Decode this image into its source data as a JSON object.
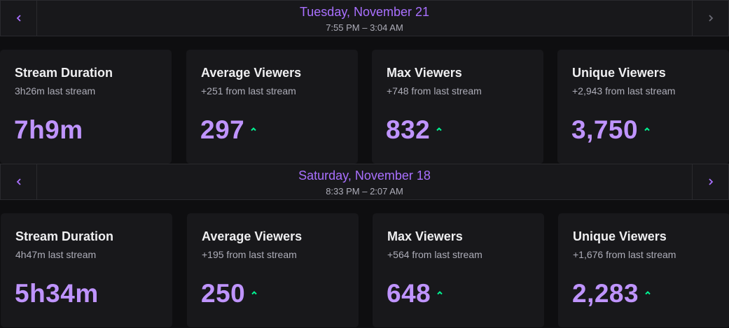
{
  "colors": {
    "accent": "#a970ff",
    "value": "#bf94ff",
    "up": "#00f593",
    "card_bg": "#18181b",
    "bg": "#0e0e10"
  },
  "streams": [
    {
      "date": "Tuesday, November 21",
      "time": "7:55 PM – 3:04 AM",
      "prev_icon": "chevron-left-icon",
      "next_icon": "chevron-right-icon",
      "stats": [
        {
          "title": "Stream Duration",
          "sub": "3h26m last stream",
          "value": "7h9m",
          "trend": ""
        },
        {
          "title": "Average Viewers",
          "sub": "+251 from last stream",
          "value": "297",
          "trend": "up"
        },
        {
          "title": "Max Viewers",
          "sub": "+748 from last stream",
          "value": "832",
          "trend": "up"
        },
        {
          "title": "Unique Viewers",
          "sub": "+2,943 from last stream",
          "value": "3,750",
          "trend": "up"
        }
      ]
    },
    {
      "date": "Saturday, November 18",
      "time": "8:33 PM – 2:07 AM",
      "prev_icon": "chevron-left-icon",
      "next_icon": "chevron-right-icon",
      "stats": [
        {
          "title": "Stream Duration",
          "sub": "4h47m last stream",
          "value": "5h34m",
          "trend": ""
        },
        {
          "title": "Average Viewers",
          "sub": "+195 from last stream",
          "value": "250",
          "trend": "up"
        },
        {
          "title": "Max Viewers",
          "sub": "+564 from last stream",
          "value": "648",
          "trend": "up"
        },
        {
          "title": "Unique Viewers",
          "sub": "+1,676 from last stream",
          "value": "2,283",
          "trend": "up"
        }
      ]
    }
  ]
}
